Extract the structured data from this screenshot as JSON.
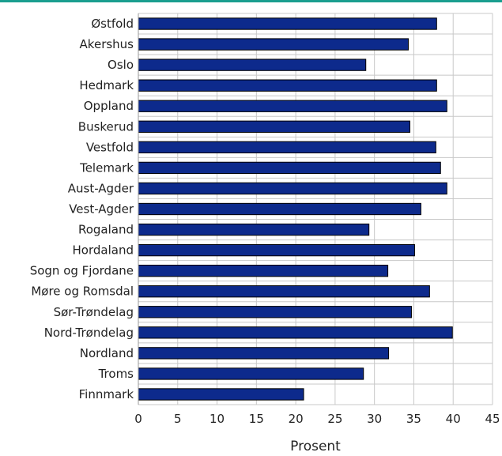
{
  "chart_data": {
    "type": "bar",
    "orientation": "horizontal",
    "categories": [
      "Østfold",
      "Akershus",
      "Oslo",
      "Hedmark",
      "Oppland",
      "Buskerud",
      "Vestfold",
      "Telemark",
      "Aust-Agder",
      "Vest-Agder",
      "Rogaland",
      "Hordaland",
      "Sogn og Fjordane",
      "Møre og Romsdal",
      "Sør-Trøndelag",
      "Nord-Trøndelag",
      "Nordland",
      "Troms",
      "Finnmark"
    ],
    "values": [
      37.9,
      34.3,
      28.9,
      37.9,
      39.2,
      34.5,
      37.8,
      38.4,
      39.2,
      35.9,
      29.3,
      35.1,
      31.7,
      37.0,
      34.7,
      39.9,
      31.8,
      28.6,
      21.0
    ],
    "title": "",
    "xlabel": "Prosent",
    "ylabel": "",
    "xlim": [
      0,
      45
    ],
    "xticks": [
      "0",
      "5",
      "10",
      "15",
      "20",
      "25",
      "30",
      "35",
      "40",
      "45"
    ],
    "grid": true,
    "colors": {
      "bar": "#0d2a8c",
      "bar_edge": "#000000",
      "grid": "#c8c8c8",
      "accent_rule": "#1a9e8f"
    }
  }
}
